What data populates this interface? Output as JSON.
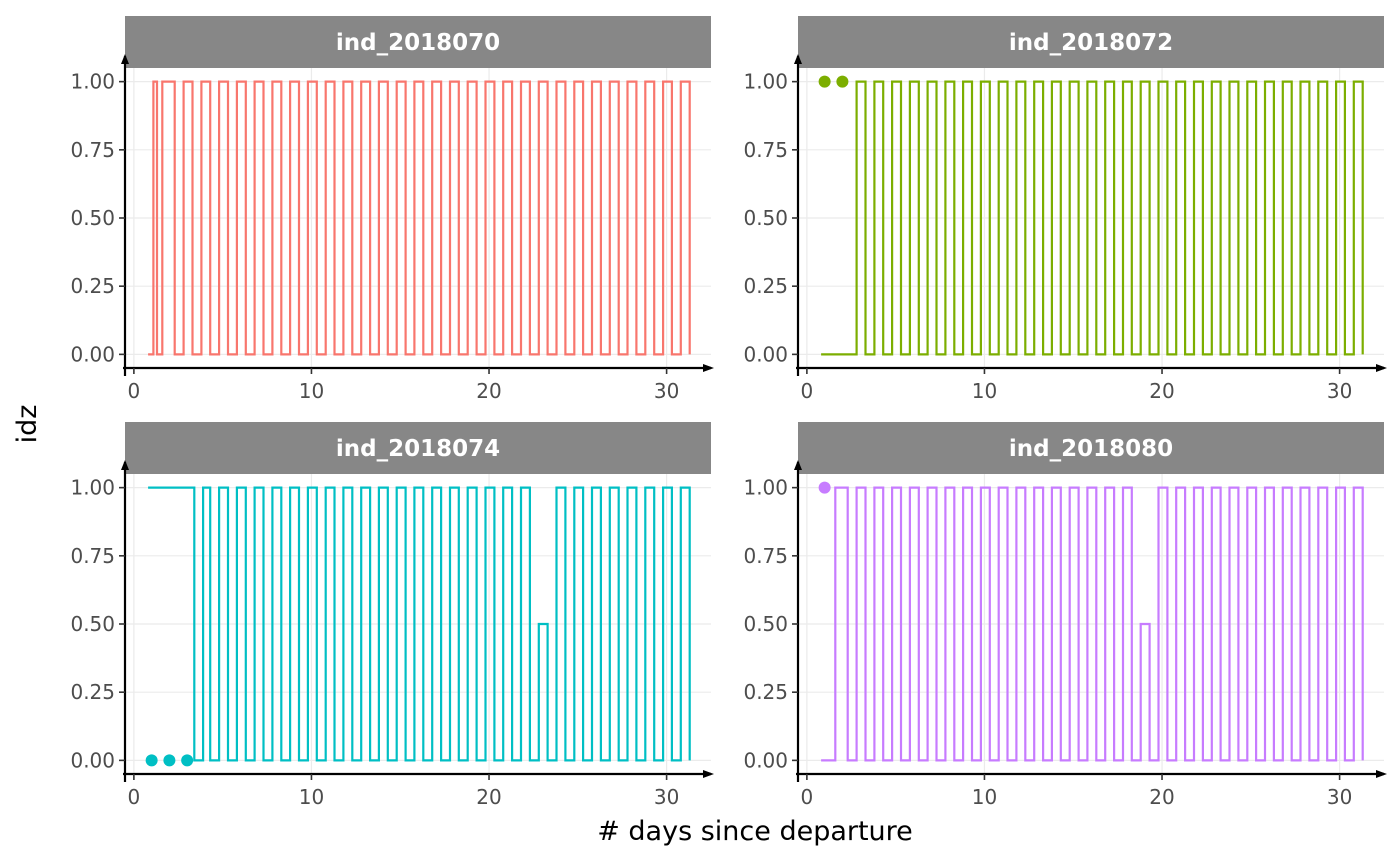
{
  "chart_data": {
    "type": "line",
    "layout": "facet-2x2",
    "xlabel": "# days since departure",
    "ylabel": "idz",
    "x_ticks": [
      0,
      10,
      20,
      30
    ],
    "y_ticks": [
      "0.00",
      "0.25",
      "0.50",
      "0.75",
      "1.00"
    ],
    "xlim": [
      -0.5,
      32.5
    ],
    "ylim": [
      -0.05,
      1.05
    ],
    "grid": true,
    "legend": "none",
    "panels": [
      {
        "title": "ind_2018070",
        "color": "#F8766D",
        "steps": [
          {
            "start": 0.8,
            "y": 0
          },
          {
            "start": 1.1,
            "y": 1
          },
          {
            "start": 1.3,
            "y": 0
          },
          {
            "start": 1.6,
            "y": 1
          },
          {
            "start": 2.3,
            "y": 0
          },
          {
            "start": 2.8,
            "y": 1
          },
          {
            "start": 3.3,
            "y": 0
          },
          {
            "start": 3.8,
            "y": 1
          },
          {
            "start": 4.3,
            "y": 0
          },
          {
            "start": 4.8,
            "y": 1
          },
          {
            "start": 5.3,
            "y": 0
          },
          {
            "start": 5.8,
            "y": 1
          },
          {
            "start": 6.3,
            "y": 0
          },
          {
            "start": 6.8,
            "y": 1
          },
          {
            "start": 7.3,
            "y": 0
          },
          {
            "start": 7.8,
            "y": 1
          },
          {
            "start": 8.3,
            "y": 0
          },
          {
            "start": 8.8,
            "y": 1
          },
          {
            "start": 9.3,
            "y": 0
          },
          {
            "start": 9.8,
            "y": 1
          },
          {
            "start": 10.3,
            "y": 0
          },
          {
            "start": 10.8,
            "y": 1
          },
          {
            "start": 11.3,
            "y": 0
          },
          {
            "start": 11.8,
            "y": 1
          },
          {
            "start": 12.3,
            "y": 0
          },
          {
            "start": 12.8,
            "y": 1
          },
          {
            "start": 13.3,
            "y": 0
          },
          {
            "start": 13.8,
            "y": 1
          },
          {
            "start": 14.3,
            "y": 0
          },
          {
            "start": 14.8,
            "y": 1
          },
          {
            "start": 15.3,
            "y": 0
          },
          {
            "start": 15.8,
            "y": 1
          },
          {
            "start": 16.3,
            "y": 0
          },
          {
            "start": 16.8,
            "y": 1
          },
          {
            "start": 17.3,
            "y": 0
          },
          {
            "start": 17.8,
            "y": 1
          },
          {
            "start": 18.3,
            "y": 0
          },
          {
            "start": 18.8,
            "y": 1
          },
          {
            "start": 19.3,
            "y": 0
          },
          {
            "start": 19.8,
            "y": 1
          },
          {
            "start": 20.3,
            "y": 0
          },
          {
            "start": 20.8,
            "y": 1
          },
          {
            "start": 21.3,
            "y": 0
          },
          {
            "start": 21.8,
            "y": 1
          },
          {
            "start": 22.3,
            "y": 0
          },
          {
            "start": 22.8,
            "y": 1
          },
          {
            "start": 23.3,
            "y": 0
          },
          {
            "start": 23.8,
            "y": 1
          },
          {
            "start": 24.3,
            "y": 0
          },
          {
            "start": 24.8,
            "y": 1
          },
          {
            "start": 25.3,
            "y": 0
          },
          {
            "start": 25.8,
            "y": 1
          },
          {
            "start": 26.3,
            "y": 0
          },
          {
            "start": 26.8,
            "y": 1
          },
          {
            "start": 27.3,
            "y": 0
          },
          {
            "start": 27.8,
            "y": 1
          },
          {
            "start": 28.3,
            "y": 0
          },
          {
            "start": 28.8,
            "y": 1
          },
          {
            "start": 29.3,
            "y": 0
          },
          {
            "start": 29.8,
            "y": 1
          },
          {
            "start": 30.3,
            "y": 0
          },
          {
            "start": 30.8,
            "y": 1
          }
        ],
        "end": 31.3,
        "close": true,
        "points": []
      },
      {
        "title": "ind_2018072",
        "color": "#7CAE00",
        "steps": [
          {
            "start": 0.8,
            "y": 0
          },
          {
            "start": 1.2,
            "y": 0
          },
          {
            "start": 1.6,
            "y": 0
          },
          {
            "start": 2.3,
            "y": 0
          },
          {
            "start": 2.8,
            "y": 1
          },
          {
            "start": 3.3,
            "y": 0
          },
          {
            "start": 3.8,
            "y": 1
          },
          {
            "start": 4.3,
            "y": 0
          },
          {
            "start": 4.8,
            "y": 1
          },
          {
            "start": 5.3,
            "y": 0
          },
          {
            "start": 5.8,
            "y": 1
          },
          {
            "start": 6.3,
            "y": 0
          },
          {
            "start": 6.8,
            "y": 1
          },
          {
            "start": 7.3,
            "y": 0
          },
          {
            "start": 7.8,
            "y": 1
          },
          {
            "start": 8.3,
            "y": 0
          },
          {
            "start": 8.8,
            "y": 1
          },
          {
            "start": 9.3,
            "y": 0
          },
          {
            "start": 9.8,
            "y": 1
          },
          {
            "start": 10.3,
            "y": 0
          },
          {
            "start": 10.8,
            "y": 1
          },
          {
            "start": 11.3,
            "y": 0
          },
          {
            "start": 11.8,
            "y": 1
          },
          {
            "start": 12.3,
            "y": 0
          },
          {
            "start": 12.8,
            "y": 1
          },
          {
            "start": 13.3,
            "y": 0
          },
          {
            "start": 13.8,
            "y": 1
          },
          {
            "start": 14.3,
            "y": 0
          },
          {
            "start": 14.8,
            "y": 1
          },
          {
            "start": 15.3,
            "y": 0
          },
          {
            "start": 15.8,
            "y": 1
          },
          {
            "start": 16.3,
            "y": 0
          },
          {
            "start": 16.8,
            "y": 1
          },
          {
            "start": 17.3,
            "y": 0
          },
          {
            "start": 17.8,
            "y": 1
          },
          {
            "start": 18.3,
            "y": 0
          },
          {
            "start": 18.8,
            "y": 1
          },
          {
            "start": 19.3,
            "y": 0
          },
          {
            "start": 19.8,
            "y": 1
          },
          {
            "start": 20.3,
            "y": 0
          },
          {
            "start": 20.8,
            "y": 1
          },
          {
            "start": 21.3,
            "y": 0
          },
          {
            "start": 21.8,
            "y": 1
          },
          {
            "start": 22.3,
            "y": 0
          },
          {
            "start": 22.8,
            "y": 1
          },
          {
            "start": 23.3,
            "y": 0
          },
          {
            "start": 23.8,
            "y": 1
          },
          {
            "start": 24.3,
            "y": 0
          },
          {
            "start": 24.8,
            "y": 1
          },
          {
            "start": 25.3,
            "y": 0
          },
          {
            "start": 25.8,
            "y": 1
          },
          {
            "start": 26.3,
            "y": 0
          },
          {
            "start": 26.8,
            "y": 1
          },
          {
            "start": 27.3,
            "y": 0
          },
          {
            "start": 27.8,
            "y": 1
          },
          {
            "start": 28.3,
            "y": 0
          },
          {
            "start": 28.8,
            "y": 1
          },
          {
            "start": 29.3,
            "y": 0
          },
          {
            "start": 29.8,
            "y": 1
          },
          {
            "start": 30.3,
            "y": 0
          },
          {
            "start": 30.8,
            "y": 1
          }
        ],
        "end": 31.3,
        "close": true,
        "points": [
          {
            "x": 1.0,
            "y": 1
          },
          {
            "x": 2.0,
            "y": 1
          }
        ]
      },
      {
        "title": "ind_2018074",
        "color": "#00BFC4",
        "steps": [
          {
            "start": 0.8,
            "y": 1
          },
          {
            "start": 1.3,
            "y": 1
          },
          {
            "start": 1.8,
            "y": 1
          },
          {
            "start": 2.3,
            "y": 1
          },
          {
            "start": 2.8,
            "y": 1
          },
          {
            "start": 3.4,
            "y": 0
          },
          {
            "start": 3.9,
            "y": 1
          },
          {
            "start": 4.3,
            "y": 0
          },
          {
            "start": 4.8,
            "y": 1
          },
          {
            "start": 5.3,
            "y": 0
          },
          {
            "start": 5.8,
            "y": 1
          },
          {
            "start": 6.3,
            "y": 0
          },
          {
            "start": 6.8,
            "y": 1
          },
          {
            "start": 7.3,
            "y": 0
          },
          {
            "start": 7.8,
            "y": 1
          },
          {
            "start": 8.3,
            "y": 0
          },
          {
            "start": 8.8,
            "y": 1
          },
          {
            "start": 9.3,
            "y": 0
          },
          {
            "start": 9.8,
            "y": 1
          },
          {
            "start": 10.3,
            "y": 0
          },
          {
            "start": 10.8,
            "y": 1
          },
          {
            "start": 11.3,
            "y": 0
          },
          {
            "start": 11.8,
            "y": 1
          },
          {
            "start": 12.3,
            "y": 0
          },
          {
            "start": 12.8,
            "y": 1
          },
          {
            "start": 13.3,
            "y": 0
          },
          {
            "start": 13.8,
            "y": 1
          },
          {
            "start": 14.3,
            "y": 0
          },
          {
            "start": 14.8,
            "y": 1
          },
          {
            "start": 15.3,
            "y": 0
          },
          {
            "start": 15.8,
            "y": 1
          },
          {
            "start": 16.3,
            "y": 0
          },
          {
            "start": 16.8,
            "y": 1
          },
          {
            "start": 17.3,
            "y": 0
          },
          {
            "start": 17.8,
            "y": 1
          },
          {
            "start": 18.3,
            "y": 0
          },
          {
            "start": 18.8,
            "y": 1
          },
          {
            "start": 19.3,
            "y": 0
          },
          {
            "start": 19.8,
            "y": 1
          },
          {
            "start": 20.3,
            "y": 0
          },
          {
            "start": 20.8,
            "y": 1
          },
          {
            "start": 21.3,
            "y": 0
          },
          {
            "start": 21.8,
            "y": 1
          },
          {
            "start": 22.3,
            "y": 0
          },
          {
            "start": 22.8,
            "y": 0.5
          },
          {
            "start": 23.3,
            "y": 0
          },
          {
            "start": 23.8,
            "y": 1
          },
          {
            "start": 24.3,
            "y": 0
          },
          {
            "start": 24.8,
            "y": 1
          },
          {
            "start": 25.3,
            "y": 0
          },
          {
            "start": 25.8,
            "y": 1
          },
          {
            "start": 26.3,
            "y": 0
          },
          {
            "start": 26.8,
            "y": 1
          },
          {
            "start": 27.3,
            "y": 0
          },
          {
            "start": 27.8,
            "y": 1
          },
          {
            "start": 28.3,
            "y": 0
          },
          {
            "start": 28.8,
            "y": 1
          },
          {
            "start": 29.3,
            "y": 0
          },
          {
            "start": 29.8,
            "y": 1
          },
          {
            "start": 30.3,
            "y": 0
          },
          {
            "start": 30.8,
            "y": 1
          }
        ],
        "end": 31.3,
        "close": true,
        "points": [
          {
            "x": 1.0,
            "y": 0
          },
          {
            "x": 2.0,
            "y": 0
          },
          {
            "x": 3.0,
            "y": 0
          }
        ]
      },
      {
        "title": "ind_2018080",
        "color": "#C77CFF",
        "steps": [
          {
            "start": 0.8,
            "y": 0
          },
          {
            "start": 1.3,
            "y": 0
          },
          {
            "start": 1.6,
            "y": 1
          },
          {
            "start": 2.3,
            "y": 0
          },
          {
            "start": 2.8,
            "y": 1
          },
          {
            "start": 3.3,
            "y": 0
          },
          {
            "start": 3.8,
            "y": 1
          },
          {
            "start": 4.3,
            "y": 0
          },
          {
            "start": 4.8,
            "y": 1
          },
          {
            "start": 5.3,
            "y": 0
          },
          {
            "start": 5.8,
            "y": 1
          },
          {
            "start": 6.3,
            "y": 0
          },
          {
            "start": 6.8,
            "y": 1
          },
          {
            "start": 7.3,
            "y": 0
          },
          {
            "start": 7.8,
            "y": 1
          },
          {
            "start": 8.3,
            "y": 0
          },
          {
            "start": 8.8,
            "y": 1
          },
          {
            "start": 9.3,
            "y": 0
          },
          {
            "start": 9.8,
            "y": 1
          },
          {
            "start": 10.3,
            "y": 0
          },
          {
            "start": 10.8,
            "y": 1
          },
          {
            "start": 11.3,
            "y": 0
          },
          {
            "start": 11.8,
            "y": 1
          },
          {
            "start": 12.3,
            "y": 0
          },
          {
            "start": 12.8,
            "y": 1
          },
          {
            "start": 13.3,
            "y": 0
          },
          {
            "start": 13.8,
            "y": 1
          },
          {
            "start": 14.3,
            "y": 0
          },
          {
            "start": 14.8,
            "y": 1
          },
          {
            "start": 15.3,
            "y": 0
          },
          {
            "start": 15.8,
            "y": 1
          },
          {
            "start": 16.3,
            "y": 0
          },
          {
            "start": 16.8,
            "y": 1
          },
          {
            "start": 17.3,
            "y": 0
          },
          {
            "start": 17.8,
            "y": 1
          },
          {
            "start": 18.3,
            "y": 0
          },
          {
            "start": 18.8,
            "y": 0.5
          },
          {
            "start": 19.3,
            "y": 0
          },
          {
            "start": 19.8,
            "y": 1
          },
          {
            "start": 20.3,
            "y": 0
          },
          {
            "start": 20.8,
            "y": 1
          },
          {
            "start": 21.3,
            "y": 0
          },
          {
            "start": 21.8,
            "y": 1
          },
          {
            "start": 22.3,
            "y": 0
          },
          {
            "start": 22.8,
            "y": 1
          },
          {
            "start": 23.3,
            "y": 0
          },
          {
            "start": 23.8,
            "y": 1
          },
          {
            "start": 24.3,
            "y": 0
          },
          {
            "start": 24.8,
            "y": 1
          },
          {
            "start": 25.3,
            "y": 0
          },
          {
            "start": 25.8,
            "y": 1
          },
          {
            "start": 26.3,
            "y": 0
          },
          {
            "start": 26.8,
            "y": 1
          },
          {
            "start": 27.3,
            "y": 0
          },
          {
            "start": 27.8,
            "y": 1
          },
          {
            "start": 28.3,
            "y": 0
          },
          {
            "start": 28.8,
            "y": 1
          },
          {
            "start": 29.3,
            "y": 0
          },
          {
            "start": 29.8,
            "y": 1
          },
          {
            "start": 30.3,
            "y": 0
          },
          {
            "start": 30.8,
            "y": 1
          }
        ],
        "end": 31.3,
        "close": true,
        "points": [
          {
            "x": 1.0,
            "y": 1
          }
        ]
      }
    ]
  }
}
